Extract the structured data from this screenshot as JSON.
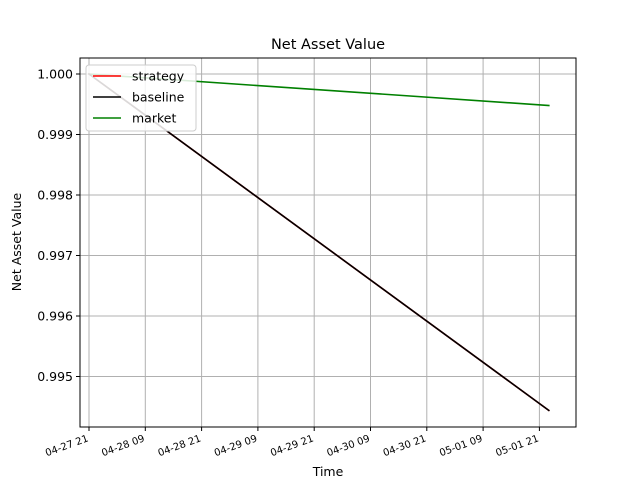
{
  "chart_data": {
    "type": "line",
    "title": "Net Asset Value",
    "xlabel": "Time",
    "ylabel": "Net Asset Value",
    "x": [
      "04-27 21",
      "05-01 23"
    ],
    "series": [
      {
        "name": "strategy",
        "color": "#ff0000",
        "values": [
          1.0,
          0.99444
        ]
      },
      {
        "name": "baseline",
        "color": "#000000",
        "values": [
          1.0,
          0.99444
        ]
      },
      {
        "name": "market",
        "color": "#008000",
        "values": [
          1.0,
          0.99948
        ]
      }
    ],
    "xticks": [
      "04-27 21",
      "04-28 09",
      "04-28 21",
      "04-29 09",
      "04-29 21",
      "04-30 09",
      "04-30 21",
      "05-01 09",
      "05-01 21"
    ],
    "yticks": [
      "0.995",
      "0.996",
      "0.997",
      "0.998",
      "0.999",
      "1.000"
    ],
    "grid": true,
    "legend_position": "upper-left"
  }
}
